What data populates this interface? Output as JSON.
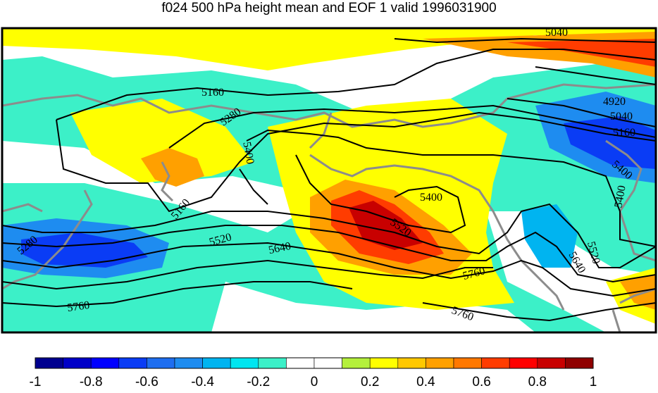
{
  "title": "f024 500 hPa height mean and EOF 1 valid 1996031900",
  "contour_labels": [
    "5040",
    "4920",
    "5040",
    "5160",
    "5400",
    "5400",
    "5160",
    "5280",
    "5400",
    "5160",
    "5400",
    "5520",
    "5520",
    "5640",
    "5280",
    "5760",
    "5760",
    "5760",
    "5520",
    "5640"
  ],
  "colorbar": {
    "colors": [
      "#00008f",
      "#0000c8",
      "#0000ff",
      "#0a3cf5",
      "#1e6ef0",
      "#1e8cf0",
      "#00b4f0",
      "#00e6f0",
      "#3cf0c8",
      "#ffffff",
      "#ffffff",
      "#b4f03c",
      "#ffff00",
      "#ffc800",
      "#ffa000",
      "#ff7800",
      "#ff3c00",
      "#ff0000",
      "#c80000",
      "#8f0000"
    ],
    "tick_labels": [
      "-1",
      "-0.8",
      "-0.6",
      "-0.4",
      "-0.2",
      "0",
      "0.2",
      "0.4",
      "0.6",
      "0.8",
      "1"
    ]
  }
}
